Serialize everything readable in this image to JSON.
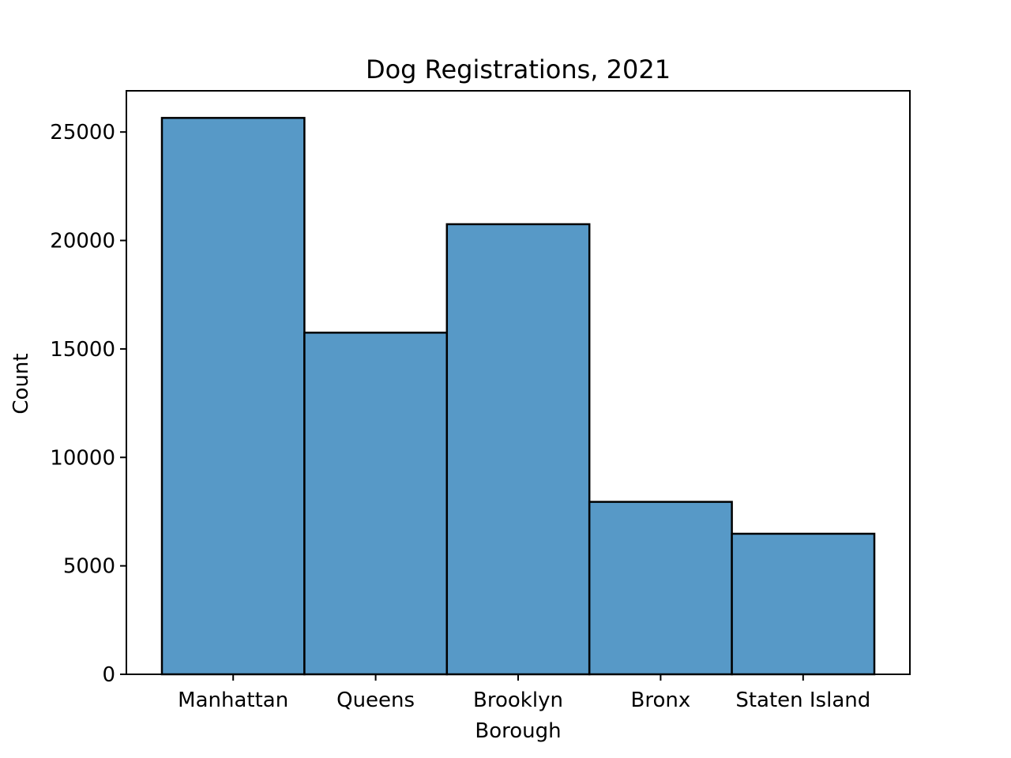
{
  "chart_data": {
    "type": "bar",
    "title": "Dog Registrations, 2021",
    "xlabel": "Borough",
    "ylabel": "Count",
    "categories": [
      "Manhattan",
      "Queens",
      "Brooklyn",
      "Bronx",
      "Staten Island"
    ],
    "values": [
      25650,
      15750,
      20750,
      7950,
      6480
    ],
    "ylim": [
      0,
      26900
    ],
    "yticks": [
      0,
      5000,
      10000,
      15000,
      20000,
      25000
    ],
    "grid": false,
    "bar_color": "#5799c7",
    "edge_color": "#000000"
  }
}
